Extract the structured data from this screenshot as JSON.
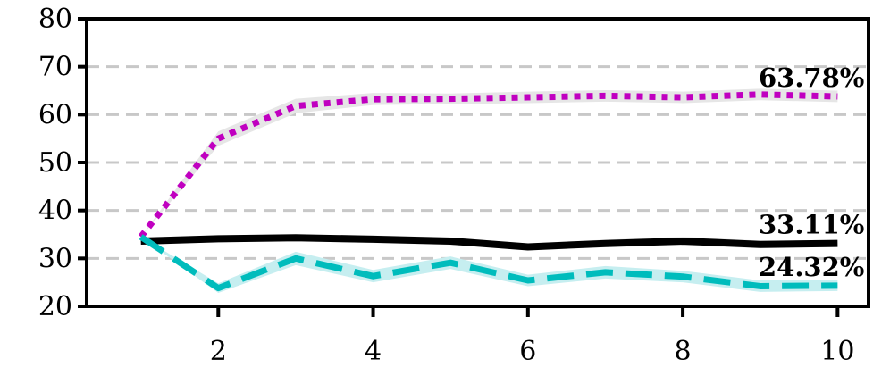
{
  "chart_data": {
    "type": "line",
    "x": [
      1,
      2,
      3,
      4,
      5,
      6,
      7,
      8,
      9,
      10
    ],
    "xlim": [
      0.3,
      10.4
    ],
    "ylim": [
      20,
      80
    ],
    "xticks": [
      2,
      4,
      6,
      8,
      10
    ],
    "yticks": [
      20,
      30,
      40,
      50,
      60,
      70,
      80
    ],
    "grid": "horizontal dashed",
    "series": [
      {
        "key": "magenta",
        "values": [
          34.5,
          55.0,
          61.8,
          63.2,
          63.3,
          63.6,
          63.9,
          63.6,
          64.2,
          63.78
        ],
        "band": [
          [
            34.5,
            34.5
          ],
          [
            53.5,
            56.5
          ],
          [
            60.3,
            63.3
          ],
          [
            62.0,
            64.5
          ],
          [
            62.2,
            64.4
          ],
          [
            62.4,
            64.8
          ],
          [
            62.7,
            65.1
          ],
          [
            62.4,
            64.8
          ],
          [
            63.0,
            65.4
          ],
          [
            62.6,
            65.0
          ]
        ],
        "color": "#c000c0",
        "band_color": "#e6e6e6",
        "style": "dotted",
        "end_label": "63.78%"
      },
      {
        "key": "black",
        "values": [
          33.6,
          34.1,
          34.3,
          34.0,
          33.6,
          32.4,
          33.1,
          33.6,
          32.9,
          33.11
        ],
        "band": [
          [
            33.3,
            33.9
          ],
          [
            33.6,
            34.6
          ],
          [
            33.7,
            34.9
          ],
          [
            33.2,
            34.8
          ],
          [
            32.8,
            34.4
          ],
          [
            31.7,
            33.1
          ],
          [
            32.3,
            33.9
          ],
          [
            32.7,
            34.5
          ],
          [
            32.1,
            33.7
          ],
          [
            32.4,
            33.8
          ]
        ],
        "color": "#000000",
        "band_color": "#e6e6e6",
        "style": "solid",
        "end_label": "33.11%"
      },
      {
        "key": "cyan",
        "values": [
          34.5,
          23.8,
          30.0,
          26.3,
          29.1,
          25.4,
          27.1,
          26.2,
          24.2,
          24.32
        ],
        "band": [
          [
            34.5,
            34.5
          ],
          [
            22.8,
            24.8
          ],
          [
            28.6,
            31.4
          ],
          [
            25.0,
            27.6
          ],
          [
            27.8,
            30.4
          ],
          [
            24.2,
            26.6
          ],
          [
            25.8,
            28.4
          ],
          [
            25.0,
            27.4
          ],
          [
            23.0,
            25.4
          ],
          [
            23.2,
            25.4
          ]
        ],
        "color": "#00bcbc",
        "band_color": "#c6eef0",
        "style": "dashed",
        "end_label": "24.32%"
      }
    ]
  }
}
